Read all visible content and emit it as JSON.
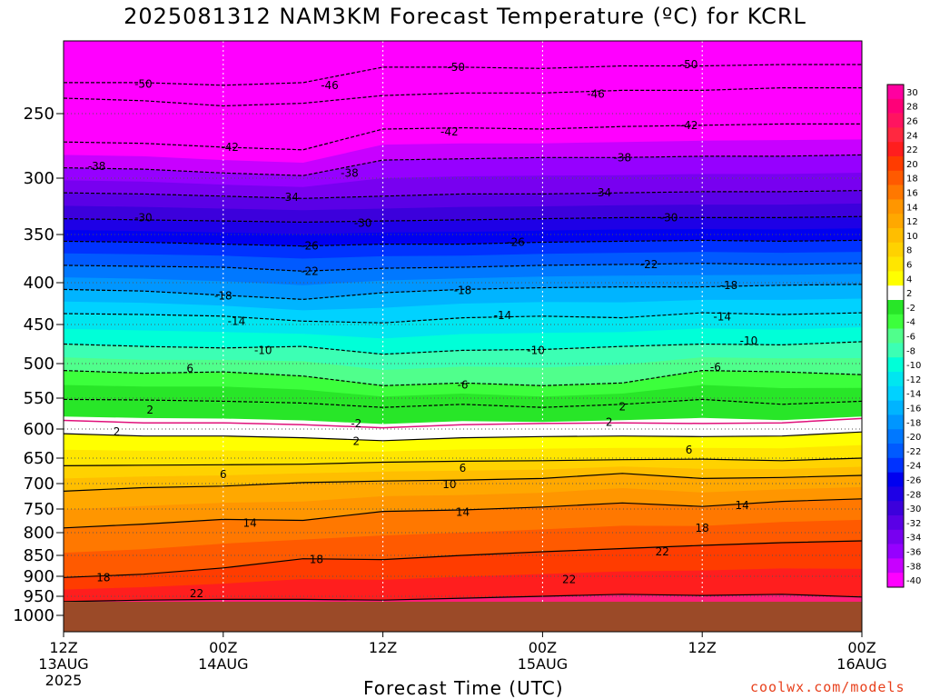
{
  "chart_data": {
    "type": "heatmap",
    "title": "2025081312 NAM3KM Forecast Temperature (ºC) for KCRL",
    "xlabel": "Forecast Time (UTC)",
    "ylabel": "",
    "y_ticks": [
      250,
      300,
      350,
      400,
      450,
      500,
      550,
      600,
      650,
      700,
      750,
      800,
      850,
      900,
      950,
      1000
    ],
    "y_range_hPa": [
      200,
      1040
    ],
    "ground_level_hPa": 965,
    "x_range_hours": [
      0,
      60
    ],
    "x_ticks": [
      {
        "hour": 0,
        "line1": "12Z",
        "line2": "13AUG",
        "line3": "2025"
      },
      {
        "hour": 12,
        "line1": "00Z",
        "line2": "14AUG",
        "line3": ""
      },
      {
        "hour": 24,
        "line1": "12Z",
        "line2": "",
        "line3": ""
      },
      {
        "hour": 36,
        "line1": "00Z",
        "line2": "15AUG",
        "line3": ""
      },
      {
        "hour": 48,
        "line1": "12Z",
        "line2": "",
        "line3": ""
      },
      {
        "hour": 60,
        "line1": "00Z",
        "line2": "16AUG",
        "line3": ""
      }
    ],
    "colorbar": {
      "labels": [
        "30",
        "28",
        "26",
        "24",
        "22",
        "20",
        "18",
        "16",
        "14",
        "12",
        "10",
        "8",
        "6",
        "4",
        "2",
        "-2",
        "-4",
        "-6",
        "-8",
        "-10",
        "-12",
        "-14",
        "-16",
        "-18",
        "-20",
        "-22",
        "-24",
        "-26",
        "-28",
        "-30",
        "-32",
        "-34",
        "-36",
        "-38",
        "-40"
      ],
      "colors": [
        "#ff00a0",
        "#ff0078",
        "#ff1460",
        "#ff2840",
        "#ff1e1e",
        "#ff3c00",
        "#ff5a00",
        "#ff7800",
        "#ff9600",
        "#ffa800",
        "#ffbe00",
        "#ffd200",
        "#ffe600",
        "#ffff00",
        "#ffffff",
        "#28e628",
        "#3cff3c",
        "#50ff8c",
        "#3cffb4",
        "#00ffd8",
        "#00e6f0",
        "#00d2ff",
        "#00b4ff",
        "#0096ff",
        "#0078ff",
        "#005aff",
        "#0032ff",
        "#0000f0",
        "#1e00e6",
        "#3c00dc",
        "#5a00e6",
        "#7800f0",
        "#9600ff",
        "#c800ff",
        "#ff00ff"
      ]
    },
    "isotherm_levels": [
      {
        "temp": 22,
        "pres": [
          964,
          960,
          958,
          958,
          960,
          955,
          950,
          945,
          948,
          945,
          952
        ]
      },
      {
        "temp": 18,
        "pres": [
          903,
          895,
          880,
          858,
          860,
          850,
          842,
          835,
          828,
          822,
          818
        ]
      },
      {
        "temp": 14,
        "pres": [
          790,
          782,
          772,
          774,
          755,
          752,
          746,
          738,
          745,
          735,
          730
        ]
      },
      {
        "temp": 10,
        "pres": [
          715,
          708,
          705,
          698,
          695,
          693,
          690,
          680,
          690,
          688,
          684
        ]
      },
      {
        "temp": 6,
        "pres": [
          665,
          664,
          663,
          662,
          658,
          656,
          655,
          653,
          652,
          655,
          650
        ]
      },
      {
        "temp": 2,
        "pres": [
          608,
          612,
          612,
          615,
          620,
          615,
          613,
          612,
          613,
          612,
          605
        ]
      },
      {
        "temp": -2,
        "pres": [
          552,
          553,
          555,
          558,
          565,
          560,
          565,
          560,
          552,
          560,
          555
        ]
      },
      {
        "temp": -6,
        "pres": [
          510,
          514,
          512,
          518,
          532,
          528,
          532,
          528,
          510,
          512,
          516
        ]
      },
      {
        "temp": -10,
        "pres": [
          475,
          478,
          480,
          478,
          488,
          483,
          482,
          478,
          475,
          476,
          472
        ]
      },
      {
        "temp": -14,
        "pres": [
          437,
          438,
          440,
          446,
          448,
          442,
          440,
          442,
          436,
          438,
          436
        ]
      },
      {
        "temp": -18,
        "pres": [
          408,
          410,
          415,
          420,
          412,
          408,
          406,
          405,
          405,
          403,
          402
        ]
      },
      {
        "temp": -22,
        "pres": [
          382,
          383,
          384,
          388,
          385,
          384,
          382,
          381,
          380,
          381,
          380
        ]
      },
      {
        "temp": -26,
        "pres": [
          357,
          358,
          360,
          362,
          360,
          360,
          358,
          357,
          356,
          357,
          356
        ]
      },
      {
        "temp": -30,
        "pres": [
          336,
          337,
          338,
          339,
          338,
          337,
          336,
          335,
          335,
          335,
          334
        ]
      },
      {
        "temp": -34,
        "pres": [
          313,
          314,
          316,
          318,
          316,
          314,
          314,
          313,
          312,
          312,
          311
        ]
      },
      {
        "temp": -38,
        "pres": [
          292,
          293,
          296,
          298,
          286,
          285,
          284,
          284,
          283,
          283,
          282
        ]
      },
      {
        "temp": -42,
        "pres": [
          272,
          273,
          276,
          278,
          262,
          261,
          262,
          260,
          259,
          258,
          258
        ]
      },
      {
        "temp": -46,
        "pres": [
          238,
          240,
          244,
          242,
          236,
          234,
          234,
          232,
          232,
          230,
          230
        ]
      },
      {
        "temp": -50,
        "pres": [
          226,
          226,
          228,
          226,
          214,
          214,
          215,
          213,
          213,
          212,
          212
        ]
      }
    ],
    "isotherm_hours": [
      0,
      6,
      12,
      18,
      24,
      30,
      36,
      42,
      48,
      54,
      60
    ],
    "contour_labels": [
      {
        "text": "-50",
        "hour": 6,
        "pres": 227
      },
      {
        "text": "-46",
        "hour": 20,
        "pres": 228
      },
      {
        "text": "-50",
        "hour": 29.5,
        "pres": 214
      },
      {
        "text": "-46",
        "hour": 40,
        "pres": 235
      },
      {
        "text": "-50",
        "hour": 47,
        "pres": 212
      },
      {
        "text": "-42",
        "hour": 12.5,
        "pres": 276
      },
      {
        "text": "-42",
        "hour": 29,
        "pres": 264
      },
      {
        "text": "-42",
        "hour": 47,
        "pres": 259
      },
      {
        "text": "-38",
        "hour": 2.5,
        "pres": 291
      },
      {
        "text": "-38",
        "hour": 21.5,
        "pres": 296
      },
      {
        "text": "-38",
        "hour": 42,
        "pres": 284
      },
      {
        "text": "-34",
        "hour": 17,
        "pres": 317
      },
      {
        "text": "-34",
        "hour": 40.5,
        "pres": 313
      },
      {
        "text": "-30",
        "hour": 6,
        "pres": 335
      },
      {
        "text": "-30",
        "hour": 22.5,
        "pres": 340
      },
      {
        "text": "-30",
        "hour": 45.5,
        "pres": 335
      },
      {
        "text": "-26",
        "hour": 18.5,
        "pres": 362
      },
      {
        "text": "-26",
        "hour": 34,
        "pres": 358
      },
      {
        "text": "-22",
        "hour": 18.5,
        "pres": 388
      },
      {
        "text": "-22",
        "hour": 44,
        "pres": 381
      },
      {
        "text": "-18",
        "hour": 12,
        "pres": 416
      },
      {
        "text": "-18",
        "hour": 30,
        "pres": 409
      },
      {
        "text": "-18",
        "hour": 50,
        "pres": 403
      },
      {
        "text": "-14",
        "hour": 13,
        "pres": 446
      },
      {
        "text": "-14",
        "hour": 33,
        "pres": 439
      },
      {
        "text": "-14",
        "hour": 49.5,
        "pres": 441
      },
      {
        "text": "-10",
        "hour": 15,
        "pres": 483
      },
      {
        "text": "-10",
        "hour": 35.5,
        "pres": 483
      },
      {
        "text": "-10",
        "hour": 51.5,
        "pres": 471
      },
      {
        "text": "6",
        "hour": 9.5,
        "pres": 507
      },
      {
        "text": "-6",
        "hour": 30,
        "pres": 531
      },
      {
        "text": "-6",
        "hour": 49,
        "pres": 505
      },
      {
        "text": "2",
        "hour": 6.5,
        "pres": 569
      },
      {
        "text": "2",
        "hour": 42,
        "pres": 564
      },
      {
        "text": "-2",
        "hour": 22,
        "pres": 591
      },
      {
        "text": "2",
        "hour": 4,
        "pres": 605
      },
      {
        "text": "2",
        "hour": 41,
        "pres": 589
      },
      {
        "text": "2",
        "hour": 22,
        "pres": 621
      },
      {
        "text": "6",
        "hour": 12,
        "pres": 682
      },
      {
        "text": "6",
        "hour": 30,
        "pres": 670
      },
      {
        "text": "6",
        "hour": 47,
        "pres": 636
      },
      {
        "text": "10",
        "hour": 29,
        "pres": 702
      },
      {
        "text": "14",
        "hour": 14,
        "pres": 780
      },
      {
        "text": "14",
        "hour": 30,
        "pres": 757
      },
      {
        "text": "14",
        "hour": 51,
        "pres": 743
      },
      {
        "text": "18",
        "hour": 3,
        "pres": 903
      },
      {
        "text": "18",
        "hour": 19,
        "pres": 860
      },
      {
        "text": "18",
        "hour": 48,
        "pres": 790
      },
      {
        "text": "22",
        "hour": 10,
        "pres": 943
      },
      {
        "text": "22",
        "hour": 38,
        "pres": 908
      },
      {
        "text": "22",
        "hour": 45,
        "pres": 842
      }
    ]
  },
  "credit": "coolwx.com/models"
}
